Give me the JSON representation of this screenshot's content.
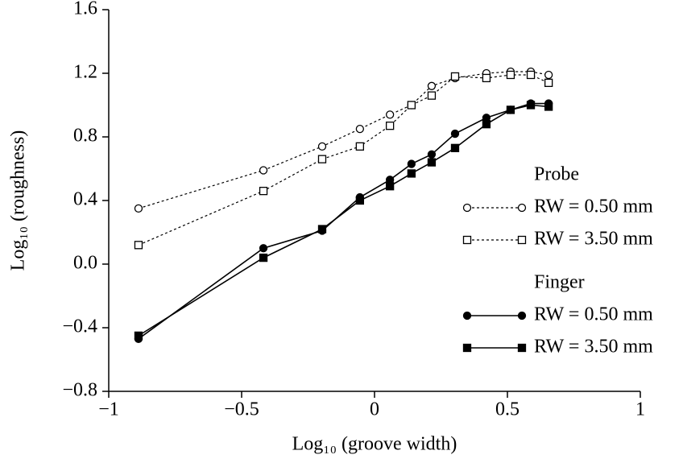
{
  "chart_data": {
    "type": "line",
    "xlabel": "Log₁₀ (groove width)",
    "ylabel": "Log₁₀ (roughness)",
    "x": [
      -0.888,
      -0.418,
      -0.197,
      -0.055,
      0.058,
      0.139,
      0.215,
      0.303,
      0.421,
      0.512,
      0.588,
      0.655
    ],
    "series": [
      {
        "name": "RW = 0.50 mm",
        "group": 0,
        "color": "#000000",
        "marker": "circle",
        "filled": false,
        "dashed": true,
        "values": [
          0.35,
          0.59,
          0.74,
          0.85,
          0.94,
          1.0,
          1.12,
          1.17,
          1.2,
          1.21,
          1.21,
          1.19
        ]
      },
      {
        "name": "RW = 3.50 mm",
        "group": 0,
        "color": "#000000",
        "marker": "square",
        "filled": false,
        "dashed": true,
        "values": [
          0.12,
          0.46,
          0.66,
          0.74,
          0.87,
          1.0,
          1.06,
          1.18,
          1.17,
          1.19,
          1.19,
          1.14
        ]
      },
      {
        "name": "RW = 0.50 mm",
        "group": 1,
        "color": "#000000",
        "marker": "circle",
        "filled": true,
        "dashed": false,
        "values": [
          -0.47,
          0.1,
          0.21,
          0.42,
          0.53,
          0.63,
          0.69,
          0.82,
          0.92,
          0.97,
          1.01,
          1.01
        ]
      },
      {
        "name": "RW = 3.50 mm",
        "group": 1,
        "color": "#000000",
        "marker": "square",
        "filled": true,
        "dashed": false,
        "values": [
          -0.45,
          0.04,
          0.22,
          0.4,
          0.49,
          0.57,
          0.64,
          0.73,
          0.88,
          0.97,
          1.0,
          0.99
        ]
      }
    ],
    "legend_groups": [
      "Probe",
      "Finger"
    ],
    "xlim": [
      -1,
      1
    ],
    "xticks": [
      {
        "value": -1,
        "label": "−1"
      },
      {
        "value": -0.5,
        "label": "−0.5"
      },
      0,
      0.5,
      1
    ],
    "ylim": [
      -0.8,
      1.6
    ],
    "yticks": [
      {
        "value": -0.8,
        "label": "−0.8"
      },
      {
        "value": -0.4,
        "label": "−0.4"
      },
      {
        "value": 0,
        "label": "0.0"
      },
      0.4,
      0.8,
      1.2,
      1.6
    ],
    "grid": false
  }
}
